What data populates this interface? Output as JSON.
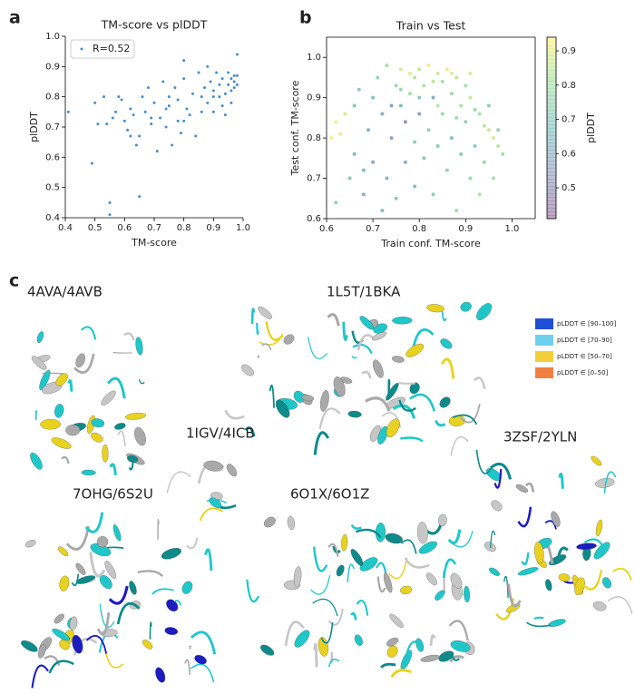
{
  "panel_labels": [
    "a",
    "b",
    "c"
  ],
  "chart_data": [
    {
      "type": "scatter",
      "title": "TM-score vs plDDT",
      "xlabel": "TM-score",
      "ylabel": "plDDT",
      "xlim": [
        0.4,
        1
      ],
      "ylim": [
        0.4,
        1
      ],
      "xticks": [
        0.4,
        0.5,
        0.6,
        0.7,
        0.8,
        0.9,
        {
          "value": 1,
          "label": "1.0"
        }
      ],
      "yticks": [
        0.4,
        0.5,
        0.6,
        0.7,
        0.8,
        0.9,
        {
          "value": 1,
          "label": "1.0"
        }
      ],
      "spines": [
        "left",
        "bottom"
      ],
      "legend": "upper left",
      "grid": false,
      "series": [
        {
          "name": "R=0.52",
          "color": "#4a8cc8",
          "x": [
            0.41,
            0.49,
            0.5,
            0.51,
            0.53,
            0.54,
            0.55,
            0.55,
            0.56,
            0.57,
            0.58,
            0.59,
            0.6,
            0.61,
            0.62,
            0.63,
            0.64,
            0.65,
            0.65,
            0.66,
            0.67,
            0.68,
            0.69,
            0.7,
            0.71,
            0.72,
            0.73,
            0.74,
            0.75,
            0.75,
            0.76,
            0.77,
            0.78,
            0.78,
            0.79,
            0.8,
            0.8,
            0.81,
            0.82,
            0.83,
            0.84,
            0.85,
            0.86,
            0.86,
            0.87,
            0.88,
            0.88,
            0.89,
            0.9,
            0.9,
            0.91,
            0.92,
            0.92,
            0.93,
            0.93,
            0.94,
            0.95,
            0.95,
            0.96,
            0.96,
            0.97,
            0.97,
            0.97,
            0.98,
            0.98,
            0.98,
            0.74,
            0.69,
            0.62,
            0.8,
            0.9,
            0.94,
            0.96
          ],
          "values": [
            0.75,
            0.58,
            0.78,
            0.71,
            0.8,
            0.71,
            0.45,
            0.41,
            0.73,
            0.75,
            0.8,
            0.79,
            0.72,
            0.69,
            0.76,
            0.74,
            0.64,
            0.67,
            0.47,
            0.8,
            0.75,
            0.83,
            0.71,
            0.78,
            0.62,
            0.73,
            0.85,
            0.7,
            0.8,
            0.77,
            0.64,
            0.83,
            0.79,
            0.72,
            0.68,
            0.92,
            0.86,
            0.76,
            0.74,
            0.81,
            0.67,
            0.88,
            0.8,
            0.75,
            0.83,
            0.9,
            0.78,
            0.85,
            0.82,
            0.75,
            0.88,
            0.8,
            0.84,
            0.77,
            0.86,
            0.81,
            0.84,
            0.88,
            0.82,
            0.86,
            0.85,
            0.83,
            0.87,
            0.87,
            0.94,
            0.84,
            0.76,
            0.73,
            0.67,
            0.72,
            0.8,
            0.74,
            0.78
          ]
        }
      ]
    },
    {
      "type": "scatter",
      "title": "Train vs Test",
      "xlabel": "Train conf. TM-score",
      "ylabel": "Test conf. TM-score",
      "xlim": [
        0.6,
        1.05
      ],
      "ylim": [
        0.6,
        1.05
      ],
      "xticks": [
        0.6,
        0.7,
        0.8,
        0.9,
        {
          "value": 1,
          "label": "1.0"
        }
      ],
      "yticks": [
        0.6,
        0.7,
        0.8,
        0.9,
        {
          "value": 1,
          "label": "1.0"
        }
      ],
      "spines": [
        "left",
        "bottom",
        "right",
        "top"
      ],
      "grid": false,
      "colormap": "viridis",
      "colorbar": {
        "label": "plDDT",
        "lim": [
          0.41,
          0.94
        ],
        "ticks": [
          0.5,
          0.6,
          0.7,
          0.8,
          0.9
        ]
      },
      "series": [
        {
          "x": [
            0.62,
            0.63,
            0.61,
            0.64,
            0.62,
            0.65,
            0.66,
            0.67,
            0.68,
            0.69,
            0.7,
            0.7,
            0.71,
            0.72,
            0.72,
            0.73,
            0.73,
            0.74,
            0.75,
            0.75,
            0.76,
            0.76,
            0.77,
            0.77,
            0.78,
            0.78,
            0.79,
            0.79,
            0.8,
            0.8,
            0.81,
            0.81,
            0.82,
            0.82,
            0.83,
            0.83,
            0.84,
            0.84,
            0.85,
            0.85,
            0.86,
            0.86,
            0.87,
            0.87,
            0.88,
            0.88,
            0.89,
            0.89,
            0.9,
            0.9,
            0.91,
            0.91,
            0.92,
            0.92,
            0.93,
            0.93,
            0.94,
            0.94,
            0.95,
            0.95,
            0.96,
            0.96,
            0.97,
            0.97,
            0.98,
            0.76,
            0.8,
            0.84,
            0.88,
            0.79,
            0.83,
            0.87,
            0.74,
            0.68,
            0.66,
            0.91
          ],
          "values": [
            0.84,
            0.81,
            0.8,
            0.86,
            0.64,
            0.7,
            0.76,
            0.92,
            0.66,
            0.82,
            0.9,
            0.74,
            0.95,
            0.62,
            0.86,
            0.98,
            0.7,
            0.8,
            0.93,
            0.65,
            0.97,
            0.88,
            0.84,
            0.74,
            0.96,
            0.91,
            0.79,
            0.68,
            0.97,
            0.86,
            0.93,
            0.75,
            0.98,
            0.82,
            0.9,
            0.66,
            0.96,
            0.78,
            0.94,
            0.86,
            0.97,
            0.72,
            0.91,
            0.8,
            0.95,
            0.62,
            0.88,
            0.76,
            0.93,
            0.84,
            0.9,
            0.7,
            0.87,
            0.78,
            0.86,
            0.66,
            0.83,
            0.74,
            0.82,
            0.88,
            0.8,
            0.7,
            0.78,
            0.82,
            0.76,
            0.92,
            0.9,
            0.88,
            0.85,
            0.95,
            0.94,
            0.96,
            0.88,
            0.72,
            0.88,
            0.96
          ],
          "c": [
            0.92,
            0.9,
            0.93,
            0.88,
            0.75,
            0.7,
            0.65,
            0.7,
            0.6,
            0.62,
            0.68,
            0.58,
            0.75,
            0.66,
            0.6,
            0.8,
            0.62,
            0.55,
            0.78,
            0.7,
            0.88,
            0.64,
            0.5,
            0.6,
            0.9,
            0.8,
            0.72,
            0.66,
            0.85,
            0.55,
            0.82,
            0.7,
            0.92,
            0.74,
            0.6,
            0.72,
            0.86,
            0.7,
            0.8,
            0.76,
            0.9,
            0.74,
            0.78,
            0.68,
            0.84,
            0.8,
            0.82,
            0.7,
            0.8,
            0.74,
            0.86,
            0.78,
            0.78,
            0.72,
            0.8,
            0.82,
            0.84,
            0.76,
            0.86,
            0.72,
            0.88,
            0.8,
            0.84,
            0.74,
            0.8,
            0.76,
            0.7,
            0.84,
            0.8,
            0.83,
            0.85,
            0.9,
            0.56,
            0.64,
            0.7,
            0.88
          ]
        }
      ]
    }
  ],
  "structures": {
    "titles": [
      "4AVA/4AVB",
      "1L5T/1BKA",
      "1IGV/4ICB",
      "3ZSF/2YLN",
      "7OHG/6S2U",
      "6O1X/6O1Z"
    ],
    "legend": [
      {
        "label": "pLDDT ∈ [90–100]",
        "color": "#1f4fd6"
      },
      {
        "label": "pLDDT ∈ [70–90]",
        "color": "#6fcfef"
      },
      {
        "label": "pLDDT ∈ [50–70]",
        "color": "#f2cf3a"
      },
      {
        "label": "pLDDT ∈ [0–50]",
        "color": "#f08040"
      }
    ]
  }
}
